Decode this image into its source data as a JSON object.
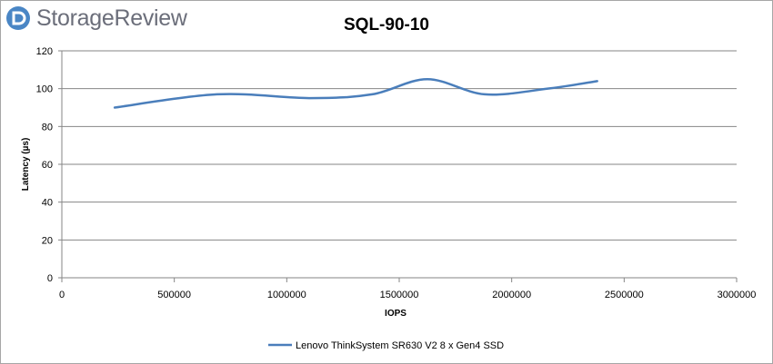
{
  "brand": {
    "name": "StorageReview",
    "logo_icon": "storagereview-logo-icon",
    "logo_color": "#6b6e7a",
    "icon_color": "#4a86c5"
  },
  "chart_data": {
    "type": "line",
    "title": "SQL-90-10",
    "xlabel": "IOPS",
    "ylabel": "Latency (µs)",
    "xlim": [
      0,
      3000000
    ],
    "ylim": [
      0,
      120
    ],
    "xticks": [
      0,
      500000,
      1000000,
      1500000,
      2000000,
      2500000,
      3000000
    ],
    "xtick_labels": [
      "0",
      "500000",
      "1000000",
      "1500000",
      "2000000",
      "2500000",
      "3000000"
    ],
    "yticks": [
      0,
      20,
      40,
      60,
      80,
      100,
      120
    ],
    "ytick_labels": [
      "0",
      "20",
      "40",
      "60",
      "80",
      "100",
      "120"
    ],
    "grid": "horizontal",
    "legend_position": "bottom",
    "series": [
      {
        "name": "Lenovo ThinkSystem SR630 V2 8 x Gen4 SSD",
        "color": "#4a7ebb",
        "x": [
          235000,
          690000,
          1100000,
          1380000,
          1625000,
          1880000,
          2160000,
          2380000
        ],
        "y": [
          90,
          97,
          95,
          97,
          105,
          97,
          100,
          104
        ]
      }
    ]
  }
}
